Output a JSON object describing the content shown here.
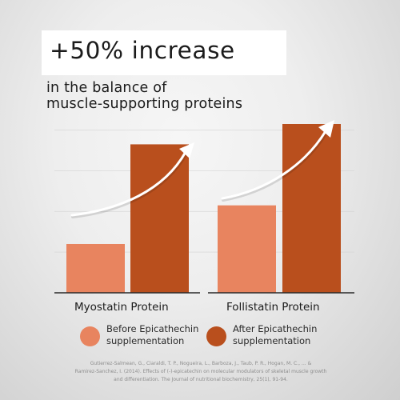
{
  "headline": {
    "text": "+50% increase"
  },
  "subtitle": {
    "line1": "in the balance of",
    "line2": "muscle-supporting proteins"
  },
  "chart_data": {
    "type": "bar",
    "title": "",
    "xlabel": "",
    "ylabel": "",
    "ylim": [
      0,
      100
    ],
    "grid": true,
    "categories": [
      "Myostatin Protein",
      "Follistatin Protein"
    ],
    "series": [
      {
        "name": "Before Epicathechin supplementation",
        "values": [
          24,
          43
        ],
        "color": "#e8845f"
      },
      {
        "name": "After Epicathechin supplementation",
        "values": [
          73,
          83
        ],
        "color": "#b94f1d"
      }
    ],
    "annotations": [
      "upward trend arrow"
    ]
  },
  "legend": {
    "placement": "bottom",
    "items": [
      {
        "line1": "Before Epicathechin",
        "line2": "supplementation"
      },
      {
        "line1": "After Epicathechin",
        "line2": "supplementation"
      }
    ]
  },
  "citation": {
    "line1": "Gutierrez-Salmean, G., Ciaraldi, T. P., Nogueira, L., Barboza, J., Taub, P. R., Hogan, M. C., ... &",
    "line2": "Ramirez-Sanchez, I. (2014). Effects of (-)-epicatechin on molecular modulators of skeletal muscle growth",
    "line3": "and differentiation. The Journal of nutritional biochemistry, 25(1), 91-94."
  },
  "colors": {
    "before": "#e8845f",
    "after": "#b94f1d",
    "axis": "#2a2a2a",
    "grid": "#cfcfcf",
    "arrow": "#ffffff"
  }
}
